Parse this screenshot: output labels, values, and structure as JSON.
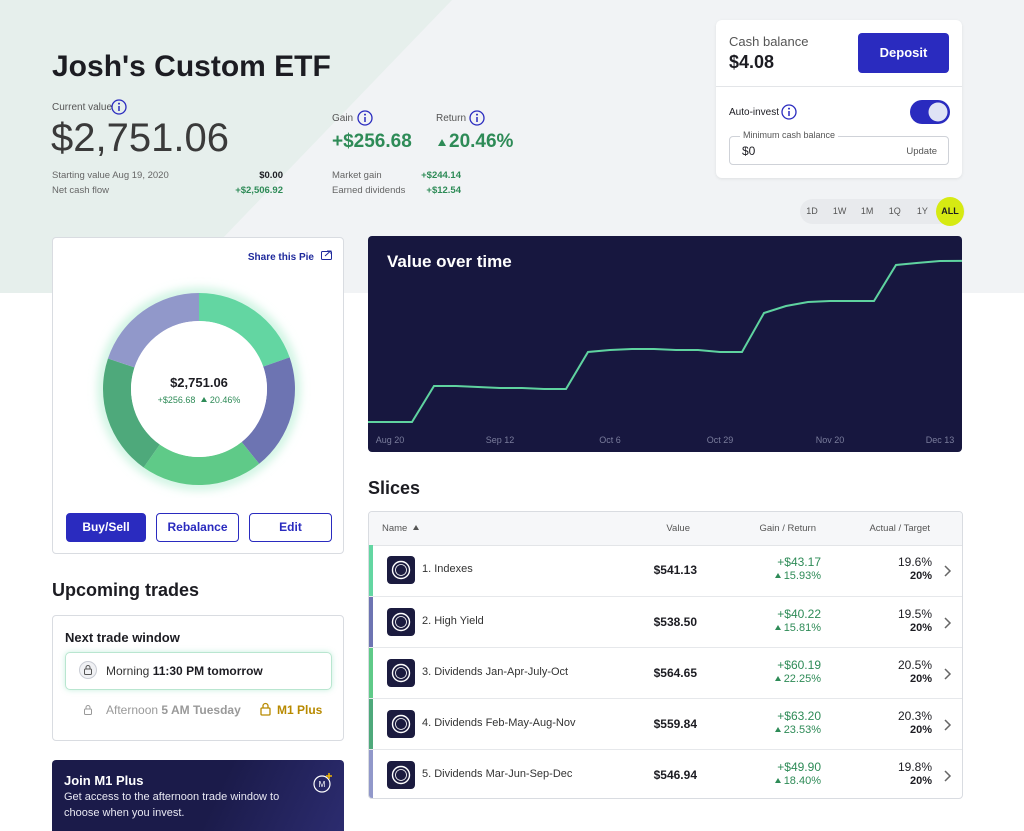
{
  "header": {
    "title": "Josh's Custom ETF",
    "current_value_label": "Current value",
    "current_value": "$2,751.06",
    "gain_label": "Gain",
    "gain": "+$256.68",
    "return_label": "Return",
    "return": "20.46%",
    "starting_value_label": "Starting value Aug 19, 2020",
    "starting_value": "$0.00",
    "net_cash_flow_label": "Net cash flow",
    "net_cash_flow": "+$2,506.92",
    "market_gain_label": "Market gain",
    "market_gain": "+$244.14",
    "earned_dividends_label": "Earned dividends",
    "earned_dividends": "+$12.54"
  },
  "cash_panel": {
    "cash_balance_label": "Cash balance",
    "cash_balance": "$4.08",
    "deposit_button": "Deposit",
    "auto_invest_label": "Auto-invest",
    "minimum_cash_label": "Minimum cash balance",
    "minimum_cash": "$0",
    "update_button": "Update"
  },
  "range_buttons": [
    "1D",
    "1W",
    "1M",
    "1Q",
    "1Y",
    "ALL"
  ],
  "pie_card": {
    "share_label": "Share this Pie",
    "buttons": [
      "Buy/Sell",
      "Rebalance",
      "Edit"
    ]
  },
  "chart_data": [
    {
      "type": "pie",
      "categories": [
        "1. Indexes",
        "2. High Yield",
        "3. Dividends Jan-Apr-July-Oct",
        "4. Dividends Feb-May-Aug-Nov",
        "5. Dividends Mar-Jun-Sep-Dec"
      ],
      "values": [
        19.6,
        19.5,
        20.5,
        20.3,
        19.8
      ],
      "value_labels": [
        "19.6%",
        "19.5%",
        "20.5%",
        "20.3%",
        "19.8%"
      ],
      "colors": [
        "#63d6a2",
        "#6d74b2",
        "#5fca88",
        "#4ea97b",
        "#9198ca"
      ]
    },
    {
      "type": "line",
      "title": "Value over time",
      "categories": [
        null,
        "Aug 20",
        null,
        null,
        null,
        null,
        "Sep 12",
        null,
        null,
        null,
        null,
        "Oct 6",
        null,
        null,
        null,
        null,
        "Oct 29",
        null,
        null,
        null,
        null,
        "Nov 20",
        null,
        null,
        null,
        null,
        "Dec 13",
        null
      ],
      "values": [
        432,
        432,
        432,
        950,
        950,
        936,
        922,
        922,
        907,
        907,
        1440,
        1469,
        1483,
        1483,
        1469,
        1469,
        1440,
        1440,
        2002,
        2102,
        2160,
        2174,
        2174,
        2174,
        2693,
        2722,
        2750,
        2751
      ],
      "color": "#5fd3a0",
      "ylim": [
        0,
        3110
      ]
    }
  ],
  "slices": {
    "title": "Slices",
    "columns": [
      "Name",
      "Value",
      "Gain / Return",
      "Actual / Target"
    ],
    "rows": [
      {
        "value": "$541.13",
        "gain": "+$43.17",
        "return": "15.93%",
        "target": "20%"
      },
      {
        "value": "$538.50",
        "gain": "+$40.22",
        "return": "15.81%",
        "target": "20%"
      },
      {
        "value": "$564.65",
        "gain": "+$60.19",
        "return": "22.25%",
        "target": "20%"
      },
      {
        "value": "$559.84",
        "gain": "+$63.20",
        "return": "23.53%",
        "target": "20%"
      },
      {
        "value": "$546.94",
        "gain": "+$49.90",
        "return": "18.40%",
        "target": "20%"
      }
    ]
  },
  "upcoming": {
    "title": "Upcoming trades",
    "card_title": "Next trade window",
    "morning_label": "Morning",
    "morning_time": "11:30 PM tomorrow",
    "afternoon_label": "Afternoon",
    "afternoon_time": "5 AM Tuesday",
    "plus_label": "M1 Plus"
  },
  "join": {
    "title": "Join M1 Plus",
    "text": "Get access to the afternoon trade window to choose when you invest."
  }
}
